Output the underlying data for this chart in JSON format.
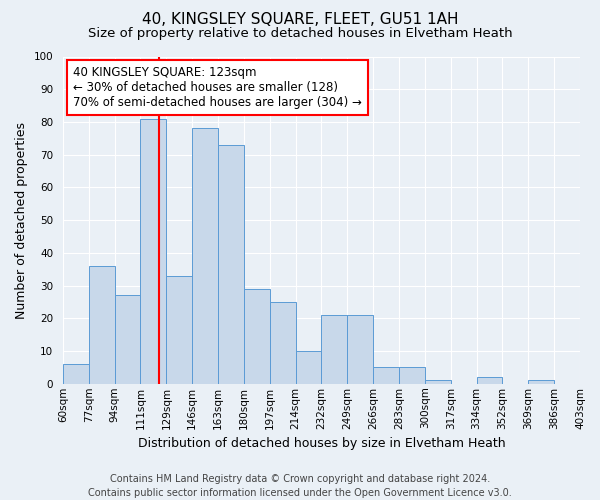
{
  "title": "40, KINGSLEY SQUARE, FLEET, GU51 1AH",
  "subtitle": "Size of property relative to detached houses in Elvetham Heath",
  "xlabel": "Distribution of detached houses by size in Elvetham Heath",
  "ylabel": "Number of detached properties",
  "bin_labels": [
    "60sqm",
    "77sqm",
    "94sqm",
    "111sqm",
    "129sqm",
    "146sqm",
    "163sqm",
    "180sqm",
    "197sqm",
    "214sqm",
    "232sqm",
    "249sqm",
    "266sqm",
    "283sqm",
    "300sqm",
    "317sqm",
    "334sqm",
    "352sqm",
    "369sqm",
    "386sqm",
    "403sqm"
  ],
  "bar_heights": [
    6,
    36,
    27,
    81,
    33,
    78,
    73,
    29,
    25,
    10,
    21,
    21,
    5,
    5,
    1,
    0,
    2,
    0,
    1,
    0
  ],
  "bar_color": "#c8d8ea",
  "bar_edge_color": "#5b9bd5",
  "vline_color": "red",
  "vline_pos": 3.72,
  "annotation_text": "40 KINGSLEY SQUARE: 123sqm\n← 30% of detached houses are smaller (128)\n70% of semi-detached houses are larger (304) →",
  "annotation_box_color": "white",
  "annotation_box_edge": "red",
  "ylim": [
    0,
    100
  ],
  "yticks": [
    0,
    10,
    20,
    30,
    40,
    50,
    60,
    70,
    80,
    90,
    100
  ],
  "footer_line1": "Contains HM Land Registry data © Crown copyright and database right 2024.",
  "footer_line2": "Contains public sector information licensed under the Open Government Licence v3.0.",
  "background_color": "#eaf0f6",
  "grid_color": "white",
  "title_fontsize": 11,
  "subtitle_fontsize": 9.5,
  "axis_label_fontsize": 9,
  "tick_fontsize": 7.5,
  "annotation_fontsize": 8.5,
  "footer_fontsize": 7
}
